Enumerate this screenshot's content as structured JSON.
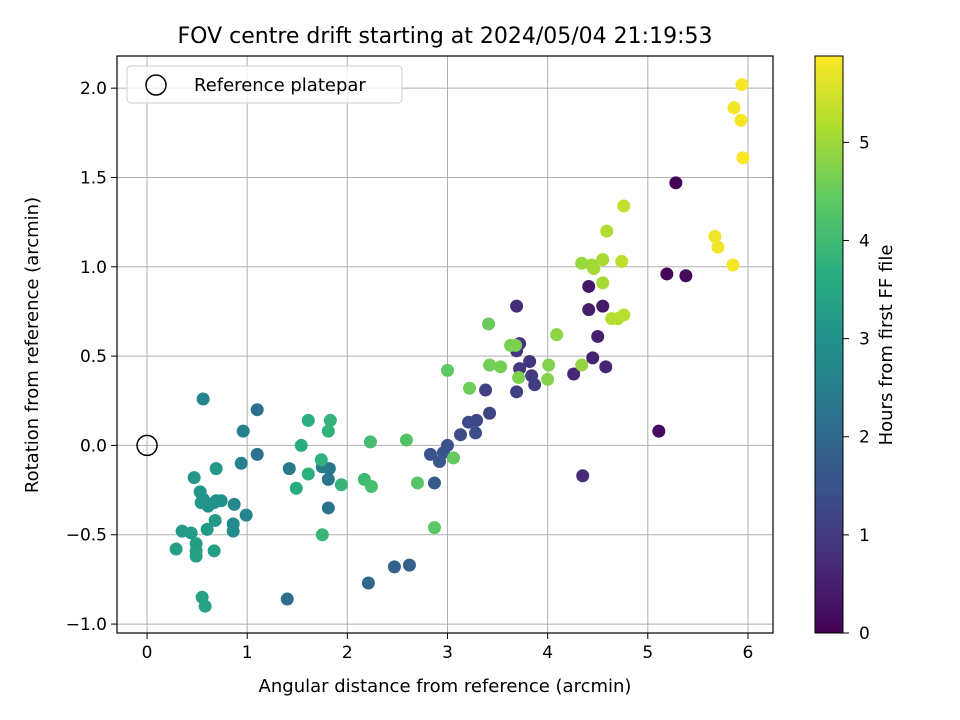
{
  "chart_data": {
    "type": "scatter",
    "title": "FOV centre drift starting at 2024/05/04 21:19:53",
    "xlabel": "Angular distance from reference (arcmin)",
    "ylabel": "Rotation from reference (arcmin)",
    "xlim": [
      -0.3,
      6.25
    ],
    "ylim": [
      -1.05,
      2.18
    ],
    "xticks": [
      0,
      1,
      2,
      3,
      4,
      5,
      6
    ],
    "xtick_labels": [
      "0",
      "1",
      "2",
      "3",
      "4",
      "5",
      "6"
    ],
    "yticks": [
      -1.0,
      -0.5,
      0.0,
      0.5,
      1.0,
      1.5,
      2.0
    ],
    "ytick_labels": [
      "−1.0",
      "−0.5",
      "0.0",
      "0.5",
      "1.0",
      "1.5",
      "2.0"
    ],
    "grid": true,
    "legend": {
      "position": "top-left",
      "entries": [
        {
          "label": "Reference platepar",
          "marker": "open-circle"
        }
      ]
    },
    "reference_point": {
      "x": 0,
      "y": 0
    },
    "colorbar": {
      "label": "Hours from first FF file",
      "colormap": "viridis",
      "range": [
        0,
        5.88
      ],
      "ticks": [
        0,
        1,
        2,
        3,
        4,
        5
      ],
      "tick_labels": [
        "0",
        "1",
        "2",
        "3",
        "4",
        "5"
      ]
    },
    "points": [
      {
        "x": 5.28,
        "y": 1.47,
        "c": 0.05
      },
      {
        "x": 5.19,
        "y": 0.96,
        "c": 0.1
      },
      {
        "x": 5.38,
        "y": 0.95,
        "c": 0.15
      },
      {
        "x": 5.11,
        "y": 0.08,
        "c": 0.2
      },
      {
        "x": 4.41,
        "y": 0.89,
        "c": 0.35
      },
      {
        "x": 4.55,
        "y": 0.78,
        "c": 0.4
      },
      {
        "x": 4.41,
        "y": 0.76,
        "c": 0.45
      },
      {
        "x": 4.5,
        "y": 0.61,
        "c": 0.5
      },
      {
        "x": 4.45,
        "y": 0.49,
        "c": 0.55
      },
      {
        "x": 4.58,
        "y": 0.44,
        "c": 0.6
      },
      {
        "x": 4.26,
        "y": 0.4,
        "c": 0.65
      },
      {
        "x": 4.35,
        "y": -0.17,
        "c": 0.7
      },
      {
        "x": 3.69,
        "y": 0.78,
        "c": 0.75
      },
      {
        "x": 3.72,
        "y": 0.57,
        "c": 0.8
      },
      {
        "x": 3.69,
        "y": 0.53,
        "c": 0.85
      },
      {
        "x": 3.82,
        "y": 0.47,
        "c": 0.9
      },
      {
        "x": 3.72,
        "y": 0.43,
        "c": 0.95
      },
      {
        "x": 3.84,
        "y": 0.39,
        "c": 1.0
      },
      {
        "x": 3.87,
        "y": 0.34,
        "c": 1.05
      },
      {
        "x": 3.69,
        "y": 0.3,
        "c": 1.1
      },
      {
        "x": 3.38,
        "y": 0.31,
        "c": 1.15
      },
      {
        "x": 3.42,
        "y": 0.18,
        "c": 1.2
      },
      {
        "x": 3.29,
        "y": 0.14,
        "c": 1.25
      },
      {
        "x": 3.21,
        "y": 0.13,
        "c": 1.3
      },
      {
        "x": 3.13,
        "y": 0.06,
        "c": 1.35
      },
      {
        "x": 3.28,
        "y": 0.07,
        "c": 1.4
      },
      {
        "x": 3.0,
        "y": 0.0,
        "c": 1.45
      },
      {
        "x": 2.96,
        "y": -0.04,
        "c": 1.5
      },
      {
        "x": 2.83,
        "y": -0.05,
        "c": 1.55
      },
      {
        "x": 2.92,
        "y": -0.09,
        "c": 1.6
      },
      {
        "x": 2.87,
        "y": -0.21,
        "c": 1.65
      },
      {
        "x": 2.62,
        "y": -0.67,
        "c": 1.8
      },
      {
        "x": 2.47,
        "y": -0.68,
        "c": 1.85
      },
      {
        "x": 2.21,
        "y": -0.77,
        "c": 1.95
      },
      {
        "x": 1.4,
        "y": -0.86,
        "c": 2.1
      },
      {
        "x": 1.1,
        "y": 0.2,
        "c": 2.15
      },
      {
        "x": 1.1,
        "y": -0.05,
        "c": 2.2
      },
      {
        "x": 1.81,
        "y": -0.35,
        "c": 2.25
      },
      {
        "x": 1.81,
        "y": -0.19,
        "c": 2.3
      },
      {
        "x": 1.82,
        "y": -0.13,
        "c": 2.35
      },
      {
        "x": 1.42,
        "y": -0.13,
        "c": 2.4
      },
      {
        "x": 1.75,
        "y": -0.12,
        "c": 2.45
      },
      {
        "x": 0.96,
        "y": 0.08,
        "c": 2.55
      },
      {
        "x": 0.94,
        "y": -0.1,
        "c": 2.6
      },
      {
        "x": 0.56,
        "y": 0.26,
        "c": 2.65
      },
      {
        "x": 0.99,
        "y": -0.39,
        "c": 2.7
      },
      {
        "x": 0.87,
        "y": -0.33,
        "c": 2.75
      },
      {
        "x": 0.86,
        "y": -0.44,
        "c": 2.8
      },
      {
        "x": 0.86,
        "y": -0.48,
        "c": 2.85
      },
      {
        "x": 0.74,
        "y": -0.31,
        "c": 2.9
      },
      {
        "x": 0.69,
        "y": -0.31,
        "c": 2.92
      },
      {
        "x": 0.67,
        "y": -0.32,
        "c": 2.95
      },
      {
        "x": 0.61,
        "y": -0.34,
        "c": 3.0
      },
      {
        "x": 0.56,
        "y": -0.3,
        "c": 3.02
      },
      {
        "x": 0.53,
        "y": -0.26,
        "c": 3.05
      },
      {
        "x": 0.54,
        "y": -0.32,
        "c": 3.08
      },
      {
        "x": 0.47,
        "y": -0.18,
        "c": 3.1
      },
      {
        "x": 0.69,
        "y": -0.13,
        "c": 3.12
      },
      {
        "x": 0.68,
        "y": -0.42,
        "c": 3.15
      },
      {
        "x": 0.6,
        "y": -0.47,
        "c": 3.18
      },
      {
        "x": 0.35,
        "y": -0.48,
        "c": 3.2
      },
      {
        "x": 0.44,
        "y": -0.49,
        "c": 3.22
      },
      {
        "x": 0.49,
        "y": -0.55,
        "c": 3.25
      },
      {
        "x": 0.29,
        "y": -0.58,
        "c": 3.28
      },
      {
        "x": 0.49,
        "y": -0.59,
        "c": 3.3
      },
      {
        "x": 0.67,
        "y": -0.59,
        "c": 3.32
      },
      {
        "x": 0.49,
        "y": -0.62,
        "c": 3.35
      },
      {
        "x": 0.55,
        "y": -0.85,
        "c": 3.38
      },
      {
        "x": 0.58,
        "y": -0.9,
        "c": 3.4
      },
      {
        "x": 1.49,
        "y": -0.24,
        "c": 3.6
      },
      {
        "x": 1.54,
        "y": 0.0,
        "c": 3.65
      },
      {
        "x": 1.61,
        "y": 0.14,
        "c": 3.7
      },
      {
        "x": 1.61,
        "y": -0.16,
        "c": 3.72
      },
      {
        "x": 1.74,
        "y": -0.08,
        "c": 3.75
      },
      {
        "x": 1.81,
        "y": 0.08,
        "c": 3.8
      },
      {
        "x": 1.83,
        "y": 0.14,
        "c": 3.82
      },
      {
        "x": 1.94,
        "y": -0.22,
        "c": 3.85
      },
      {
        "x": 1.75,
        "y": -0.5,
        "c": 3.9
      },
      {
        "x": 2.17,
        "y": -0.19,
        "c": 4.0
      },
      {
        "x": 2.23,
        "y": 0.02,
        "c": 4.05
      },
      {
        "x": 2.24,
        "y": -0.23,
        "c": 4.1
      },
      {
        "x": 2.59,
        "y": 0.03,
        "c": 4.25
      },
      {
        "x": 2.7,
        "y": -0.21,
        "c": 4.3
      },
      {
        "x": 2.87,
        "y": -0.46,
        "c": 4.35
      },
      {
        "x": 3.0,
        "y": 0.42,
        "c": 4.4
      },
      {
        "x": 3.06,
        "y": -0.07,
        "c": 4.45
      },
      {
        "x": 3.41,
        "y": 0.68,
        "c": 4.5
      },
      {
        "x": 3.22,
        "y": 0.32,
        "c": 4.55
      },
      {
        "x": 3.42,
        "y": 0.45,
        "c": 4.6
      },
      {
        "x": 3.53,
        "y": 0.44,
        "c": 4.62
      },
      {
        "x": 3.63,
        "y": 0.56,
        "c": 4.65
      },
      {
        "x": 3.68,
        "y": 0.56,
        "c": 4.68
      },
      {
        "x": 3.71,
        "y": 0.38,
        "c": 4.7
      },
      {
        "x": 4.01,
        "y": 0.45,
        "c": 4.75
      },
      {
        "x": 4.0,
        "y": 0.37,
        "c": 4.78
      },
      {
        "x": 4.09,
        "y": 0.62,
        "c": 4.85
      },
      {
        "x": 4.34,
        "y": 0.45,
        "c": 4.9
      },
      {
        "x": 4.34,
        "y": 1.02,
        "c": 4.95
      },
      {
        "x": 4.44,
        "y": 1.01,
        "c": 5.0
      },
      {
        "x": 4.46,
        "y": 0.99,
        "c": 5.05
      },
      {
        "x": 4.55,
        "y": 0.91,
        "c": 5.08
      },
      {
        "x": 4.55,
        "y": 1.04,
        "c": 5.1
      },
      {
        "x": 4.59,
        "y": 1.2,
        "c": 5.15
      },
      {
        "x": 4.64,
        "y": 0.71,
        "c": 5.2
      },
      {
        "x": 4.7,
        "y": 0.71,
        "c": 5.22
      },
      {
        "x": 4.76,
        "y": 0.73,
        "c": 5.25
      },
      {
        "x": 4.74,
        "y": 1.03,
        "c": 5.3
      },
      {
        "x": 4.76,
        "y": 1.34,
        "c": 5.35
      },
      {
        "x": 5.67,
        "y": 1.17,
        "c": 5.75
      },
      {
        "x": 5.7,
        "y": 1.11,
        "c": 5.76
      },
      {
        "x": 5.85,
        "y": 1.01,
        "c": 5.78
      },
      {
        "x": 5.86,
        "y": 1.89,
        "c": 5.8
      },
      {
        "x": 5.93,
        "y": 1.82,
        "c": 5.82
      },
      {
        "x": 5.94,
        "y": 2.02,
        "c": 5.84
      },
      {
        "x": 5.95,
        "y": 1.61,
        "c": 5.86
      }
    ]
  }
}
